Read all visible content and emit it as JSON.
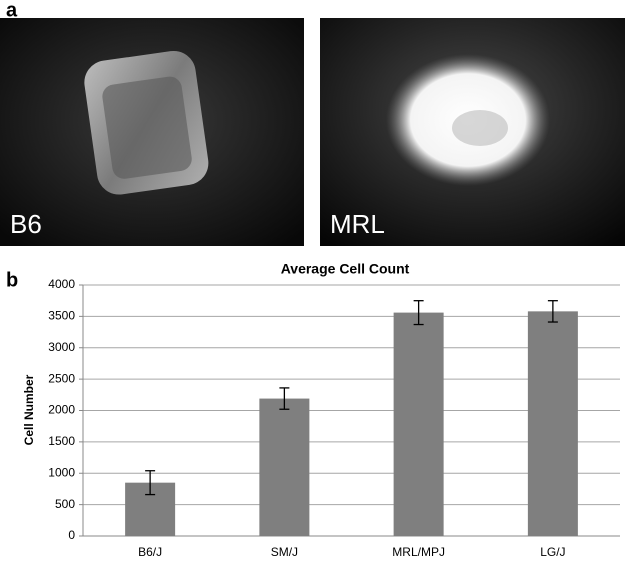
{
  "panels": [
    "a",
    "b"
  ],
  "images": [
    {
      "label": "B6"
    },
    {
      "label": "MRL"
    }
  ],
  "chart_data": {
    "type": "bar",
    "title": "Average Cell Count",
    "y_label": "Cell Number",
    "categories": [
      "B6/J",
      "SM/J",
      "MRL/MPJ",
      "LG/J"
    ],
    "series": [
      {
        "color": "#7f7f7f",
        "values": [
          850,
          2190,
          3560,
          3580
        ],
        "errors": [
          190,
          170,
          190,
          170
        ]
      }
    ],
    "ylim": [
      0,
      4000
    ],
    "yticks": [
      0,
      500,
      1000,
      1500,
      2000,
      2500,
      3000,
      3500,
      4000
    ],
    "grid": true
  }
}
